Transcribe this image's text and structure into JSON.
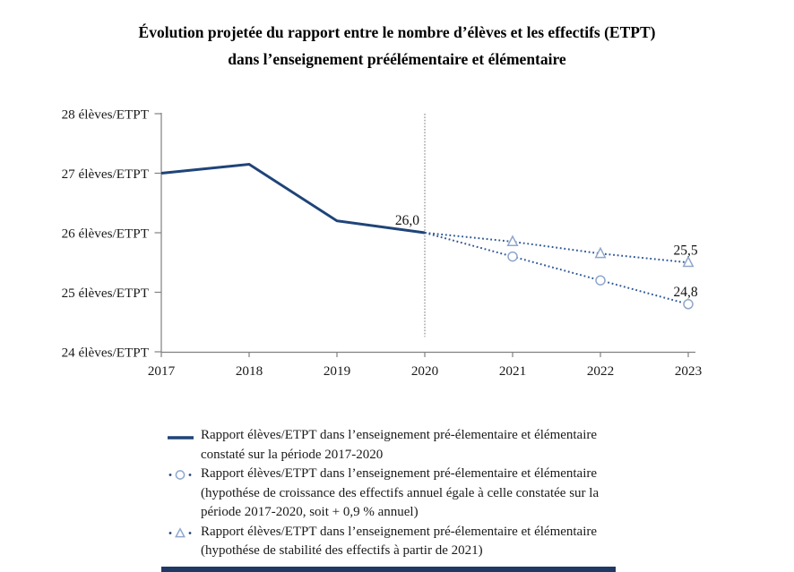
{
  "palette": {
    "solid_line": "#1f4478",
    "dotted_line": "#2d5795",
    "marker_stroke": "#8fa7cd",
    "axis": "#808080",
    "vline": "#8c8c8c",
    "text": "#1a1a1a",
    "footer_band": "#1f3864"
  },
  "title": {
    "line1": "Évolution projetée du rapport entre le nombre d’élèves et les effectifs (ETPT)",
    "line2": "dans l’enseignement préélémentaire et élémentaire"
  },
  "chart_data": {
    "type": "line",
    "title": "Évolution projetée du rapport entre le nombre d’élèves et les effectifs (ETPT) dans l’enseignement préélémentaire et élémentaire",
    "x": [
      2017,
      2018,
      2019,
      2020,
      2021,
      2022,
      2023
    ],
    "x_tick_labels": [
      "2017",
      "2018",
      "2019",
      "2020",
      "2021",
      "2022",
      "2023"
    ],
    "y_axis": {
      "min": 24,
      "max": 28,
      "tick_values": [
        28,
        27,
        26,
        25,
        24
      ],
      "tick_labels": [
        "28 élèves/ETPT",
        "27 élèves/ETPT",
        "26 élèves/ETPT",
        "25 élèves/ETPT",
        "24 élèves/ETPT"
      ]
    },
    "grid": "off",
    "vline_x": 2020,
    "series": [
      {
        "name": "constate-2017-2020",
        "style": "solid",
        "marker": "none",
        "x": [
          2017,
          2018,
          2019,
          2020
        ],
        "values": [
          27.0,
          27.15,
          26.2,
          26.0
        ]
      },
      {
        "name": "hypothese-croissance-effectifs",
        "style": "dotted",
        "marker": "circle",
        "x": [
          2020,
          2021,
          2022,
          2023
        ],
        "values": [
          26.0,
          25.6,
          25.2,
          24.8
        ]
      },
      {
        "name": "hypothese-stabilite-effectifs",
        "style": "dotted",
        "marker": "triangle",
        "x": [
          2020,
          2021,
          2022,
          2023
        ],
        "values": [
          26.0,
          25.85,
          25.65,
          25.5
        ]
      }
    ],
    "annotations": [
      {
        "text": "26,0",
        "x": 2020,
        "y": 26.0,
        "position": "above-left"
      },
      {
        "text": "25,5",
        "x": 2023,
        "y": 25.5,
        "position": "above"
      },
      {
        "text": "24,8",
        "x": 2023,
        "y": 24.8,
        "position": "above"
      }
    ],
    "legend_position": "bottom"
  },
  "legend": {
    "items": [
      {
        "marker": "solid-line",
        "lines": [
          "Rapport élèves/ETPT dans l’enseignement pré-élementaire et élémentaire",
          "constaté sur la période 2017-2020"
        ]
      },
      {
        "marker": "dotted-circle",
        "lines": [
          "Rapport élèves/ETPT dans l’enseignement pré-élementaire et élémentaire",
          "(hypothése de croissance des effectifs annuel égale à celle constatée sur la",
          "période 2017-2020, soit + 0,9 % annuel)"
        ]
      },
      {
        "marker": "dotted-triangle",
        "lines": [
          "Rapport élèves/ETPT dans l’enseignement pré-élementaire et élémentaire",
          "(hypothése de stabilité des effectifs à partir de 2021)"
        ]
      }
    ]
  }
}
